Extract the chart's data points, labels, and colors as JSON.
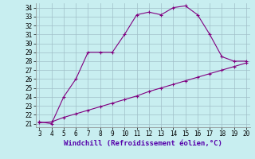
{
  "xlabel": "Windchill (Refroidissement éolien,°C)",
  "line1_x": [
    3,
    4,
    5,
    6,
    7,
    8,
    9,
    10,
    11,
    12,
    13,
    14,
    15,
    16,
    17,
    18,
    19,
    20
  ],
  "line1_y": [
    21.2,
    21.0,
    24.0,
    26.0,
    29.0,
    29.0,
    29.0,
    31.0,
    33.2,
    33.5,
    33.2,
    34.0,
    34.2,
    33.2,
    31.0,
    28.5,
    28.0,
    28.0
  ],
  "line2_x": [
    3,
    4,
    5,
    6,
    7,
    8,
    9,
    10,
    11,
    12,
    13,
    14,
    15,
    16,
    17,
    18,
    19,
    20
  ],
  "line2_y": [
    21.1,
    21.2,
    21.7,
    22.1,
    22.5,
    22.9,
    23.3,
    23.7,
    24.1,
    24.6,
    25.0,
    25.4,
    25.8,
    26.2,
    26.6,
    27.0,
    27.4,
    27.8
  ],
  "line_color": "#800080",
  "bg_color": "#c8eef0",
  "grid_major_color": "#b0c8cc",
  "grid_minor_color": "#d0e8ea",
  "xlim": [
    3,
    20
  ],
  "ylim": [
    21,
    34
  ],
  "xticks": [
    3,
    4,
    5,
    6,
    7,
    8,
    9,
    10,
    11,
    12,
    13,
    14,
    15,
    16,
    17,
    18,
    19,
    20
  ],
  "yticks": [
    21,
    22,
    23,
    24,
    25,
    26,
    27,
    28,
    29,
    30,
    31,
    32,
    33,
    34
  ],
  "tick_fontsize": 5.5,
  "xlabel_fontsize": 6.5
}
